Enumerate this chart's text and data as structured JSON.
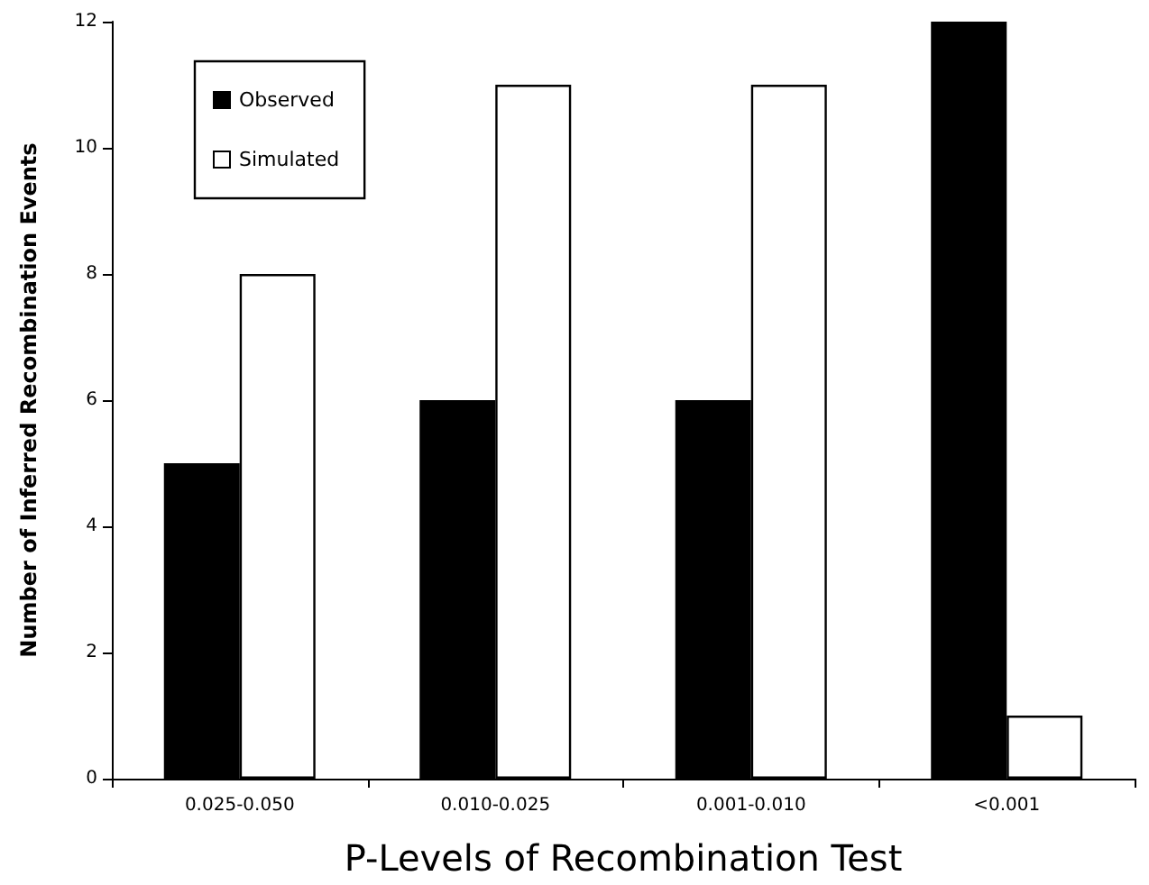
{
  "chart_data": {
    "type": "bar",
    "xlabel": "P-Levels of Recombination Test",
    "ylabel": "Number of Inferred Recombination Events",
    "categories": [
      "0.025-0.050",
      "0.010-0.025",
      "0.001-0.010",
      "<0.001"
    ],
    "series": [
      {
        "name": "Observed",
        "color": "#000000",
        "values": [
          5,
          6,
          6,
          12
        ]
      },
      {
        "name": "Simulated",
        "color": "#ffffff",
        "values": [
          8,
          11,
          11,
          1
        ]
      }
    ],
    "ylim": [
      0,
      12
    ],
    "yticks": [
      0,
      2,
      4,
      6,
      8,
      10,
      12
    ],
    "grid": false,
    "legend": "top left"
  }
}
